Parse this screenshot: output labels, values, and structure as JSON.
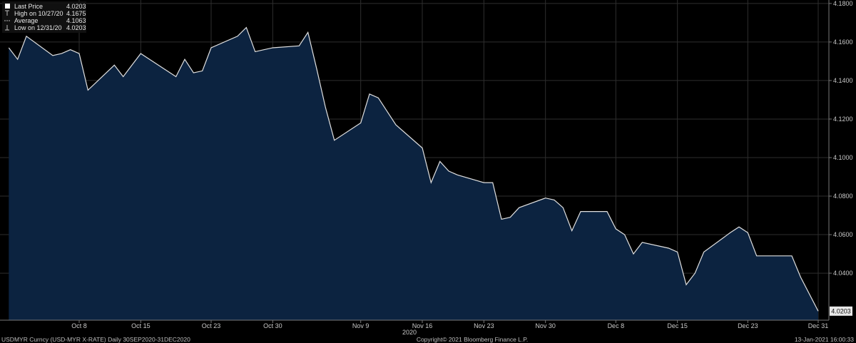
{
  "chart_data": {
    "type": "area",
    "legend": {
      "entries": [
        {
          "label": "Last Price",
          "value": "4.0203"
        },
        {
          "label": "High on 10/27/20",
          "value": "4.1675"
        },
        {
          "label": "Average",
          "value": "4.1063"
        },
        {
          "label": "Low on 12/31/20",
          "value": "4.0203"
        }
      ]
    },
    "y_ticks": [
      "4.1800",
      "4.1600",
      "4.1400",
      "4.1200",
      "4.1000",
      "4.0800",
      "4.0600",
      "4.0400"
    ],
    "y_tick_values": [
      4.18,
      4.16,
      4.14,
      4.12,
      4.1,
      4.08,
      4.06,
      4.04
    ],
    "ylim": [
      4.0156,
      4.1818
    ],
    "last_value_label": "4.0203",
    "x_ticks": [
      {
        "label": "Oct 8",
        "date": "2020-10-08"
      },
      {
        "label": "Oct 15",
        "date": "2020-10-15"
      },
      {
        "label": "Oct 23",
        "date": "2020-10-23"
      },
      {
        "label": "Oct 30",
        "date": "2020-10-30"
      },
      {
        "label": "Nov 9",
        "date": "2020-11-09"
      },
      {
        "label": "Nov 16",
        "date": "2020-11-16"
      },
      {
        "label": "Nov 23",
        "date": "2020-11-23"
      },
      {
        "label": "Nov 30",
        "date": "2020-11-30"
      },
      {
        "label": "Dec 8",
        "date": "2020-12-08"
      },
      {
        "label": "Dec 15",
        "date": "2020-12-15"
      },
      {
        "label": "Dec 23",
        "date": "2020-12-23"
      },
      {
        "label": "Dec 31",
        "date": "2020-12-31"
      }
    ],
    "x_year_label": "2020",
    "series": [
      {
        "points": [
          {
            "date": "2020-09-30",
            "value": 4.157
          },
          {
            "date": "2020-10-01",
            "value": 4.151
          },
          {
            "date": "2020-10-02",
            "value": 4.163
          },
          {
            "date": "2020-10-05",
            "value": 4.153
          },
          {
            "date": "2020-10-06",
            "value": 4.154
          },
          {
            "date": "2020-10-07",
            "value": 4.156
          },
          {
            "date": "2020-10-08",
            "value": 4.154
          },
          {
            "date": "2020-10-09",
            "value": 4.135
          },
          {
            "date": "2020-10-12",
            "value": 4.148
          },
          {
            "date": "2020-10-13",
            "value": 4.142
          },
          {
            "date": "2020-10-14",
            "value": 4.148
          },
          {
            "date": "2020-10-15",
            "value": 4.154
          },
          {
            "date": "2020-10-16",
            "value": 4.151
          },
          {
            "date": "2020-10-19",
            "value": 4.142
          },
          {
            "date": "2020-10-20",
            "value": 4.151
          },
          {
            "date": "2020-10-21",
            "value": 4.144
          },
          {
            "date": "2020-10-22",
            "value": 4.145
          },
          {
            "date": "2020-10-23",
            "value": 4.157
          },
          {
            "date": "2020-10-26",
            "value": 4.163
          },
          {
            "date": "2020-10-27",
            "value": 4.1675
          },
          {
            "date": "2020-10-28",
            "value": 4.155
          },
          {
            "date": "2020-10-29",
            "value": 4.156
          },
          {
            "date": "2020-10-30",
            "value": 4.157
          },
          {
            "date": "2020-11-02",
            "value": 4.158
          },
          {
            "date": "2020-11-03",
            "value": 4.165
          },
          {
            "date": "2020-11-04",
            "value": 4.146
          },
          {
            "date": "2020-11-05",
            "value": 4.126
          },
          {
            "date": "2020-11-06",
            "value": 4.109
          },
          {
            "date": "2020-11-09",
            "value": 4.118
          },
          {
            "date": "2020-11-10",
            "value": 4.133
          },
          {
            "date": "2020-11-11",
            "value": 4.131
          },
          {
            "date": "2020-11-12",
            "value": 4.124
          },
          {
            "date": "2020-11-13",
            "value": 4.117
          },
          {
            "date": "2020-11-16",
            "value": 4.105
          },
          {
            "date": "2020-11-17",
            "value": 4.087
          },
          {
            "date": "2020-11-18",
            "value": 4.098
          },
          {
            "date": "2020-11-19",
            "value": 4.093
          },
          {
            "date": "2020-11-20",
            "value": 4.091
          },
          {
            "date": "2020-11-23",
            "value": 4.087
          },
          {
            "date": "2020-11-24",
            "value": 4.087
          },
          {
            "date": "2020-11-25",
            "value": 4.068
          },
          {
            "date": "2020-11-26",
            "value": 4.069
          },
          {
            "date": "2020-11-27",
            "value": 4.074
          },
          {
            "date": "2020-11-30",
            "value": 4.079
          },
          {
            "date": "2020-12-01",
            "value": 4.078
          },
          {
            "date": "2020-12-02",
            "value": 4.074
          },
          {
            "date": "2020-12-03",
            "value": 4.062
          },
          {
            "date": "2020-12-04",
            "value": 4.072
          },
          {
            "date": "2020-12-07",
            "value": 4.072
          },
          {
            "date": "2020-12-08",
            "value": 4.063
          },
          {
            "date": "2020-12-09",
            "value": 4.06
          },
          {
            "date": "2020-12-10",
            "value": 4.05
          },
          {
            "date": "2020-12-11",
            "value": 4.056
          },
          {
            "date": "2020-12-14",
            "value": 4.053
          },
          {
            "date": "2020-12-15",
            "value": 4.051
          },
          {
            "date": "2020-12-16",
            "value": 4.034
          },
          {
            "date": "2020-12-17",
            "value": 4.04
          },
          {
            "date": "2020-12-18",
            "value": 4.051
          },
          {
            "date": "2020-12-21",
            "value": 4.061
          },
          {
            "date": "2020-12-22",
            "value": 4.064
          },
          {
            "date": "2020-12-23",
            "value": 4.061
          },
          {
            "date": "2020-12-24",
            "value": 4.049
          },
          {
            "date": "2020-12-28",
            "value": 4.049
          },
          {
            "date": "2020-12-29",
            "value": 4.038
          },
          {
            "date": "2020-12-31",
            "value": 4.0203
          }
        ]
      }
    ],
    "grid": true,
    "colors": {
      "background": "#000000",
      "area_fill": "#0c2340",
      "line": "#e0e0e0",
      "grid": "#2e2e2e"
    }
  },
  "footer": {
    "left": "USDMYR Curncy (USD-MYR X-RATE)  Daily 30SEP2020-31DEC2020",
    "center": "Copyright© 2021 Bloomberg Finance L.P.",
    "right": "13-Jan-2021 16:00:33"
  }
}
